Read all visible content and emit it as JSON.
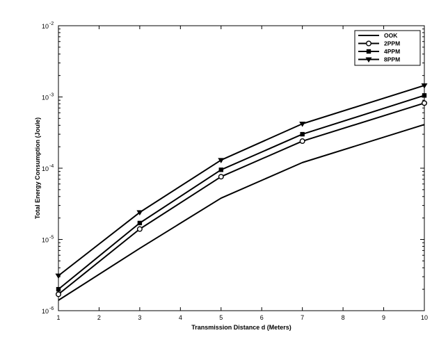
{
  "chart_data": {
    "type": "line",
    "title": "",
    "xlabel": "Transmission Distance d (Meters)",
    "ylabel": "Total Energy Consumption (Joule)",
    "xlim": [
      1,
      10
    ],
    "ylim": [
      1e-06,
      0.01
    ],
    "yscale": "log",
    "x_ticks": [
      "1",
      "2",
      "3",
      "4",
      "5",
      "6",
      "7",
      "8",
      "9",
      "10"
    ],
    "y_ticks": [
      {
        "base": "10",
        "exp": "-6"
      },
      {
        "base": "10",
        "exp": "-5"
      },
      {
        "base": "10",
        "exp": "-4"
      },
      {
        "base": "10",
        "exp": "-3"
      },
      {
        "base": "10",
        "exp": "-2"
      }
    ],
    "grid": false,
    "legend_position": "top-right",
    "x": [
      1,
      3,
      5,
      7,
      10
    ],
    "series": [
      {
        "name": "OOK",
        "marker": "none",
        "values": [
          1.4e-06,
          7.5e-06,
          3.8e-05,
          0.00012,
          0.00041
        ]
      },
      {
        "name": "2PPM",
        "marker": "circle",
        "values": [
          1.7e-06,
          1.4e-05,
          7.6e-05,
          0.00024,
          0.00082
        ]
      },
      {
        "name": "4PPM",
        "marker": "square",
        "values": [
          2e-06,
          1.7e-05,
          9.5e-05,
          0.0003,
          0.00105
        ]
      },
      {
        "name": "8PPM",
        "marker": "triangle",
        "values": [
          3.1e-06,
          2.4e-05,
          0.00013,
          0.00042,
          0.00145
        ]
      }
    ],
    "colors": {
      "line": "#000000",
      "background": "#ffffff"
    }
  }
}
